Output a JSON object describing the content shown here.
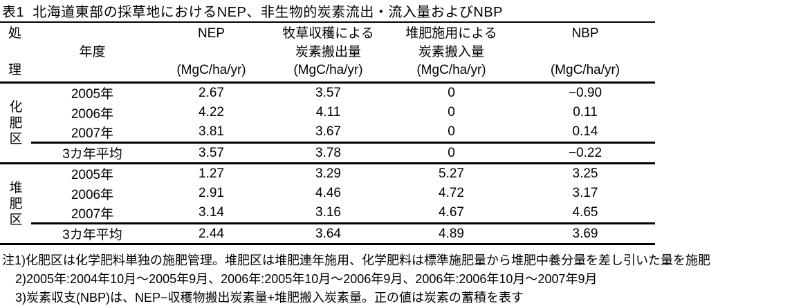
{
  "title": "表1  北海道東部の採草地におけるNEP、非生物的炭素流出・流入量およびNBP",
  "table": {
    "header": {
      "treatment_char_top": "処",
      "treatment_char_bottom": "理",
      "year_label": "年度",
      "nep": {
        "title": "NEP",
        "unit": "(MgC/ha/yr)"
      },
      "harvest": {
        "title": "牧草収穫による",
        "subtitle": "炭素搬出量",
        "unit": "(MgC/ha/yr)"
      },
      "manure": {
        "title": "堆肥施用による",
        "subtitle": "炭素搬入量",
        "unit": "(MgC/ha/yr)"
      },
      "nbp": {
        "title": "NBP",
        "unit": "(MgC/ha/yr)"
      }
    },
    "groups": [
      {
        "treatment": "化肥区",
        "rows": [
          {
            "year": "2005年",
            "nep": "2.67",
            "harvest": "3.57",
            "manure": "0",
            "nbp": "−0.90"
          },
          {
            "year": "2006年",
            "nep": "4.22",
            "harvest": "4.11",
            "manure": "0",
            "nbp": "0.11"
          },
          {
            "year": "2007年",
            "nep": "3.81",
            "harvest": "3.67",
            "manure": "0",
            "nbp": "0.14"
          },
          {
            "year": "3カ年平均",
            "nep": "3.57",
            "harvest": "3.78",
            "manure": "0",
            "nbp": "−0.22"
          }
        ]
      },
      {
        "treatment": "堆肥区",
        "rows": [
          {
            "year": "2005年",
            "nep": "1.27",
            "harvest": "3.29",
            "manure": "5.27",
            "nbp": "3.25"
          },
          {
            "year": "2006年",
            "nep": "2.91",
            "harvest": "4.46",
            "manure": "4.72",
            "nbp": "3.17"
          },
          {
            "year": "2007年",
            "nep": "3.14",
            "harvest": "3.16",
            "manure": "4.67",
            "nbp": "4.65"
          },
          {
            "year": "3カ年平均",
            "nep": "2.44",
            "harvest": "3.64",
            "manure": "4.89",
            "nbp": "3.69"
          }
        ]
      }
    ]
  },
  "footnotes": [
    "注1)化肥区は化学肥料単独の施肥管理。堆肥区は堆肥連年施用、化学肥料は標準施肥量から堆肥中養分量を差し引いた量を施肥",
    "2)2005年:2004年10月～2005年9月、2006年:2005年10月～2006年9月、2006年:2006年10月～2007年9月",
    "3)炭素収支(NBP)は、NEP−収穫物搬出炭素量+堆肥搬入炭素量。正の値は炭素の蓄積を表す"
  ]
}
